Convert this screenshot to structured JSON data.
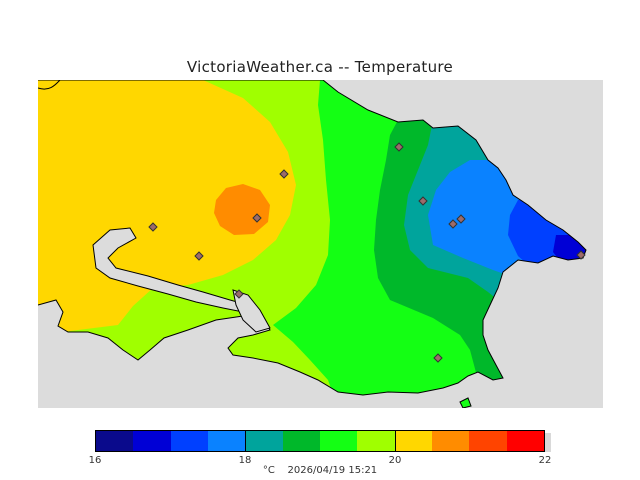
{
  "title": "VictoriaWeather.ca -- Temperature",
  "legend": {
    "unit": "°C",
    "timestamp": "2026/04/19 15:21",
    "min": 16,
    "max": 22,
    "ticks": [
      "16",
      "18",
      "20",
      "22"
    ],
    "bins": [
      {
        "from": 16.0,
        "to": 16.5,
        "color": "#0a0a8c"
      },
      {
        "from": 16.5,
        "to": 17.0,
        "color": "#0000d6"
      },
      {
        "from": 17.0,
        "to": 17.5,
        "color": "#0040ff"
      },
      {
        "from": 17.5,
        "to": 18.0,
        "color": "#0a82ff"
      },
      {
        "from": 18.0,
        "to": 18.5,
        "color": "#00a49c"
      },
      {
        "from": 18.5,
        "to": 19.0,
        "color": "#00b82a"
      },
      {
        "from": 19.0,
        "to": 19.5,
        "color": "#14ff14"
      },
      {
        "from": 19.5,
        "to": 20.0,
        "color": "#a0ff00"
      },
      {
        "from": 20.0,
        "to": 20.5,
        "color": "#ffd700"
      },
      {
        "from": 20.5,
        "to": 21.0,
        "color": "#ff8c00"
      },
      {
        "from": 21.0,
        "to": 21.5,
        "color": "#ff4400"
      },
      {
        "from": 21.5,
        "to": 22.0,
        "color": "#ff0000"
      }
    ]
  },
  "colors": {
    "water": "#dcdcdc",
    "station": "#9c6b6b",
    "coastline": "#000000"
  }
}
